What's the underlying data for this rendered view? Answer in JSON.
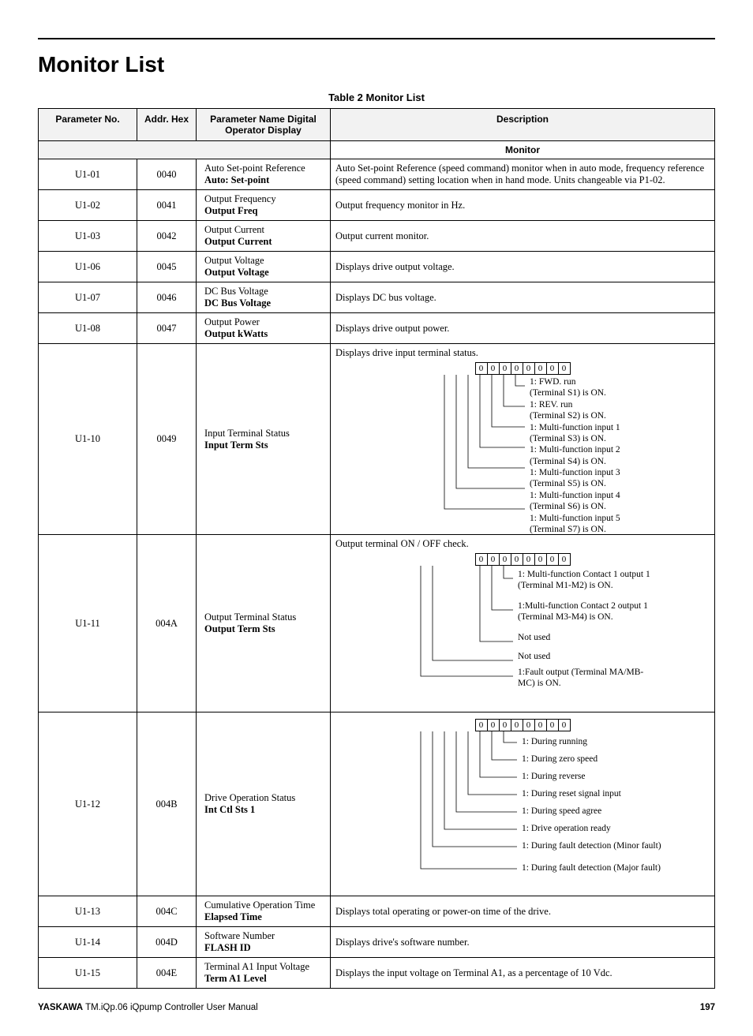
{
  "page": {
    "title": "Monitor List",
    "tableCaption": "Table 2  Monitor List",
    "columns": [
      "Parameter No.",
      "Addr. Hex",
      "Parameter Name Digital Operator Display",
      "Description"
    ],
    "sectionLabel": "Monitor",
    "footerLeftBold": "YASKAWA",
    "footerLeft": " TM.iQp.06 iQpump Controller User Manual",
    "footerRight": "197"
  },
  "rows": [
    {
      "id": "U1-01",
      "addr": "0040",
      "name": "Auto Set-point Reference",
      "disp": "Auto: Set-point",
      "desc": "Auto Set-point Reference (speed command) monitor when in auto mode, frequency reference (speed command) setting location when in hand mode. Units changeable via P1-02."
    },
    {
      "id": "U1-02",
      "addr": "0041",
      "name": "Output Frequency",
      "disp": "Output Freq",
      "desc": "Output frequency monitor in Hz."
    },
    {
      "id": "U1-03",
      "addr": "0042",
      "name": "Output Current",
      "disp": "Output Current",
      "desc": "Output current monitor."
    },
    {
      "id": "U1-06",
      "addr": "0045",
      "name": "Output Voltage",
      "disp": "Output Voltage",
      "desc": "Displays drive output voltage."
    },
    {
      "id": "U1-07",
      "addr": "0046",
      "name": "DC Bus Voltage",
      "disp": "DC Bus Voltage",
      "desc": "Displays DC bus voltage."
    },
    {
      "id": "U1-08",
      "addr": "0047",
      "name": "Output Power",
      "disp": "Output kWatts",
      "desc": "Displays drive output power."
    }
  ],
  "u110": {
    "id": "U1-10",
    "addr": "0049",
    "name": "Input Terminal Status",
    "disp": "Input Term Sts",
    "lead": "Displays drive input terminal status.",
    "bits": [
      "0",
      "0",
      "0",
      "0",
      "0",
      "0",
      "0",
      "0"
    ],
    "legend": [
      "1: FWD. run",
      "(Terminal S1) is ON.",
      "1: REV. run",
      "(Terminal S2) is ON.",
      "1: Multi-function input 1",
      "(Terminal S3) is ON.",
      "1: Multi-function input 2",
      "(Terminal S4) is ON.",
      "1: Multi-function input 3",
      "(Terminal S5) is ON.",
      "1: Multi-function input 4",
      "(Terminal S6) is ON.",
      "1: Multi-function input 5",
      "(Terminal S7) is ON."
    ]
  },
  "u111": {
    "id": "U1-11",
    "addr": "004A",
    "name": "Output Terminal Status",
    "disp": "Output Term Sts",
    "lead": "Output terminal ON / OFF check.",
    "bits": [
      "0",
      "0",
      "0",
      "0",
      "0",
      "0",
      "0",
      "0"
    ],
    "legend": [
      "1: Multi-function Contact 1 output 1 (Terminal M1-M2) is ON.",
      "1:Multi-function Contact 2 output 1 (Terminal M3-M4) is ON.",
      "Not used",
      "Not used",
      "1:Fault output (Terminal MA/MB-MC) is ON."
    ]
  },
  "u112": {
    "id": "U1-12",
    "addr": "004B",
    "name": "Drive Operation Status",
    "disp": "Int Ctl Sts 1",
    "bits": [
      "0",
      "0",
      "0",
      "0",
      "0",
      "0",
      "0",
      "0"
    ],
    "legend": [
      "1: During running",
      "1: During zero speed",
      "1: During reverse",
      "1: During reset signal input",
      "1: During speed agree",
      "1: Drive operation ready",
      "1: During fault detection (Minor fault)",
      "1: During fault detection (Major fault)"
    ]
  },
  "tail": [
    {
      "id": "U1-13",
      "addr": "004C",
      "name": "Cumulative Operation Time",
      "disp": "Elapsed Time",
      "desc": "Displays total operating or power-on time of the drive."
    },
    {
      "id": "U1-14",
      "addr": "004D",
      "name": "Software Number",
      "disp": "FLASH ID",
      "desc": "Displays drive's software number."
    },
    {
      "id": "U1-15",
      "addr": "004E",
      "name": "Terminal A1 Input Voltage",
      "disp": "Term A1 Level",
      "desc": "Displays the input voltage on Terminal A1, as a percentage of 10 Vdc."
    }
  ],
  "style": {
    "lineColor": "#000000",
    "headerBg": "#f2f2f2",
    "fontSerif": "Times New Roman",
    "fontSans": "Arial"
  }
}
